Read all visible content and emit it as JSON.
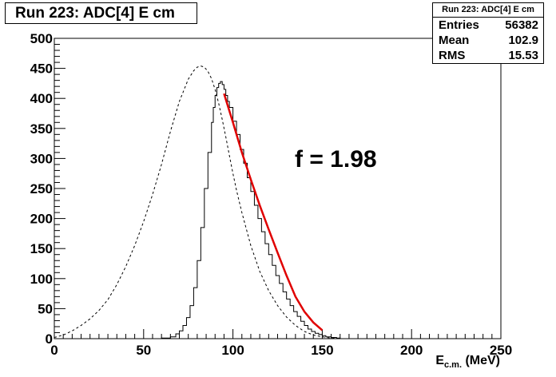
{
  "title": "Run 223: ADC[4] E cm",
  "stats": {
    "title": "Run 223: ADC[4] E cm",
    "entries_label": "Entries",
    "entries_value": "56382",
    "mean_label": "Mean",
    "mean_value": "102.9",
    "rms_label": "RMS",
    "rms_value": "15.53"
  },
  "annotation": "f = 1.98",
  "xlabel_main": "E",
  "xlabel_sub": "c.m.",
  "xlabel_unit": " (MeV)",
  "chart_data": {
    "type": "line",
    "xlim": [
      0,
      250
    ],
    "ylim": [
      0,
      500
    ],
    "x_ticks": [
      0,
      50,
      100,
      150,
      200,
      250
    ],
    "y_ticks": [
      0,
      50,
      100,
      150,
      200,
      250,
      300,
      350,
      400,
      450,
      500
    ],
    "series": [
      {
        "style": "dashed",
        "color": "#000000",
        "x": [
          0,
          5,
          10,
          15,
          20,
          25,
          30,
          35,
          40,
          45,
          50,
          55,
          60,
          65,
          70,
          75,
          78,
          80,
          82,
          84,
          86,
          88,
          90,
          92,
          94,
          96,
          98,
          100,
          102,
          105,
          110,
          115,
          120,
          125,
          130,
          135,
          140,
          145,
          150,
          155,
          160,
          165,
          170
        ],
        "y": [
          2,
          6,
          13,
          22,
          33,
          47,
          65,
          90,
          120,
          155,
          195,
          240,
          290,
          345,
          395,
          432,
          446,
          452,
          454,
          452,
          445,
          433,
          415,
          392,
          365,
          336,
          305,
          275,
          247,
          210,
          155,
          112,
          80,
          55,
          36,
          22,
          12,
          6,
          3,
          1,
          0,
          0,
          0
        ]
      },
      {
        "style": "solid",
        "color": "#000000",
        "x": [
          50,
          60,
          65,
          68,
          70,
          72,
          74,
          76,
          78,
          80,
          82,
          84,
          86,
          88,
          89,
          90,
          91,
          92,
          93,
          94,
          95,
          96,
          97,
          98,
          100,
          102,
          104,
          106,
          108,
          110,
          112,
          114,
          116,
          118,
          120,
          122,
          124,
          126,
          128,
          130,
          132,
          134,
          136,
          138,
          140,
          142,
          144,
          146,
          148,
          150,
          152,
          155,
          158,
          160,
          165,
          170
        ],
        "y": [
          0,
          1,
          3,
          8,
          13,
          22,
          35,
          55,
          85,
          130,
          185,
          250,
          310,
          360,
          385,
          405,
          418,
          425,
          428,
          423,
          415,
          405,
          395,
          385,
          362,
          340,
          315,
          292,
          268,
          245,
          222,
          200,
          178,
          158,
          140,
          122,
          105,
          92,
          78,
          66,
          55,
          45,
          37,
          29,
          22,
          16,
          12,
          9,
          7,
          5,
          3,
          2,
          1,
          0,
          0,
          0
        ]
      },
      {
        "style": "fit",
        "color": "#e00000",
        "x": [
          95,
          100,
          105,
          110,
          115,
          120,
          125,
          130,
          135,
          140,
          145,
          150
        ],
        "y": [
          408,
          360,
          310,
          265,
          222,
          182,
          143,
          105,
          70,
          45,
          27,
          14
        ]
      }
    ]
  }
}
